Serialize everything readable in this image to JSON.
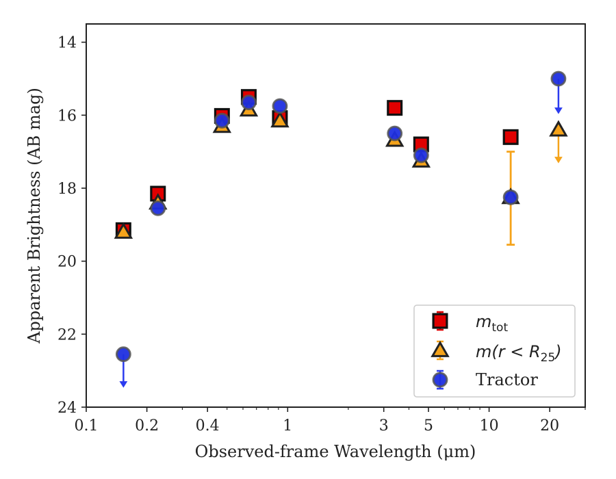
{
  "chart_data": {
    "type": "scatter",
    "title": "",
    "xlabel": "Observed-frame Wavelength (μm)",
    "ylabel": "Apparent Brightness (AB mag)",
    "x_scale": "log",
    "xlim": [
      0.1,
      30
    ],
    "ylim": [
      24,
      13.5
    ],
    "y_inverted": true,
    "grid": false,
    "legend_position": "lower-right",
    "x_ticks": [
      {
        "value": 0.1,
        "label": "0.1"
      },
      {
        "value": 0.2,
        "label": "0.2"
      },
      {
        "value": 0.4,
        "label": "0.4"
      },
      {
        "value": 1,
        "label": "1"
      },
      {
        "value": 3,
        "label": "3"
      },
      {
        "value": 5,
        "label": "5"
      },
      {
        "value": 10,
        "label": "10"
      },
      {
        "value": 20,
        "label": "20"
      }
    ],
    "y_ticks": [
      {
        "value": 14,
        "label": "14"
      },
      {
        "value": 16,
        "label": "16"
      },
      {
        "value": 18,
        "label": "18"
      },
      {
        "value": 20,
        "label": "20"
      },
      {
        "value": 22,
        "label": "22"
      },
      {
        "value": 24,
        "label": "24"
      }
    ],
    "series": [
      {
        "name": "m_tot",
        "legend_main": "m",
        "legend_sub": "tot",
        "marker": "square",
        "color": "#e00000",
        "edge": "#111111",
        "error_color": "#e00000",
        "points": [
          {
            "x": 0.153,
            "y": 19.15
          },
          {
            "x": 0.227,
            "y": 18.15
          },
          {
            "x": 0.472,
            "y": 16.02
          },
          {
            "x": 0.641,
            "y": 15.5
          },
          {
            "x": 0.915,
            "y": 16.08
          },
          {
            "x": 3.4,
            "y": 15.8
          },
          {
            "x": 4.6,
            "y": 16.8
          },
          {
            "x": 12.8,
            "y": 16.6
          }
        ]
      },
      {
        "name": "m(r < R_25)",
        "legend_main": "m(r < R",
        "legend_sub": "25",
        "legend_tail": ")",
        "marker": "triangle",
        "color": "#f5a31a",
        "edge": "#222222",
        "error_color": "#f5a31a",
        "points": [
          {
            "x": 0.153,
            "y": 19.2
          },
          {
            "x": 0.227,
            "y": 18.4
          },
          {
            "x": 0.472,
            "y": 16.3
          },
          {
            "x": 0.641,
            "y": 15.85
          },
          {
            "x": 0.915,
            "y": 16.15
          },
          {
            "x": 3.4,
            "y": 16.68
          },
          {
            "x": 4.6,
            "y": 17.25
          },
          {
            "x": 12.8,
            "y": 18.25,
            "err_low": 19.55,
            "err_high": 17.0
          },
          {
            "x": 22.1,
            "y": 16.4,
            "upper_limit_to": 17.3
          }
        ]
      },
      {
        "name": "Tractor",
        "marker": "circle",
        "color": "#1f2fe0",
        "edge": "#555555",
        "error_color": "#2b3bef",
        "points": [
          {
            "x": 0.153,
            "y": 22.55,
            "upper_limit_to": 23.45
          },
          {
            "x": 0.227,
            "y": 18.55
          },
          {
            "x": 0.472,
            "y": 16.15
          },
          {
            "x": 0.641,
            "y": 15.65
          },
          {
            "x": 0.915,
            "y": 15.75
          },
          {
            "x": 3.4,
            "y": 16.5
          },
          {
            "x": 4.6,
            "y": 17.1
          },
          {
            "x": 12.8,
            "y": 18.25
          },
          {
            "x": 22.1,
            "y": 15.0,
            "upper_limit_to": 15.95
          }
        ]
      }
    ]
  }
}
